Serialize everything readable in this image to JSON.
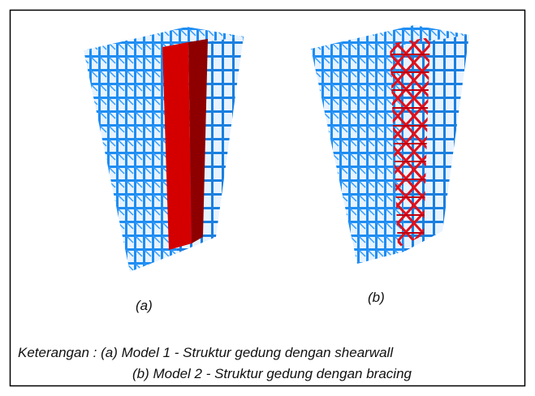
{
  "figure": {
    "labels": [
      "(a)",
      "(b)"
    ],
    "caption": [
      "Keterangan : (a) Model 1 - Struktur gedung dengan shearwall",
      "(b) Model 2 - Struktur gedung dengan bracing"
    ]
  }
}
